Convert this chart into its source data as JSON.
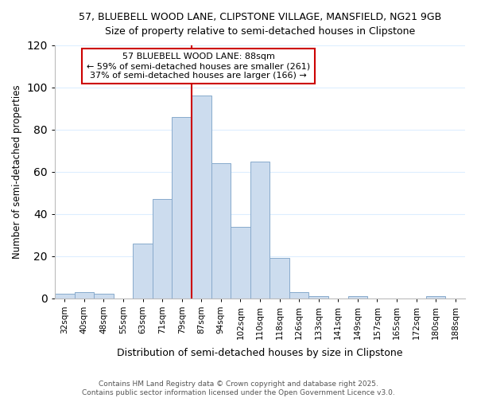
{
  "title_line1": "57, BLUEBELL WOOD LANE, CLIPSTONE VILLAGE, MANSFIELD, NG21 9GB",
  "title_line2": "Size of property relative to semi-detached houses in Clipstone",
  "xlabel": "Distribution of semi-detached houses by size in Clipstone",
  "ylabel": "Number of semi-detached properties",
  "categories": [
    "32sqm",
    "40sqm",
    "48sqm",
    "55sqm",
    "63sqm",
    "71sqm",
    "79sqm",
    "87sqm",
    "94sqm",
    "102sqm",
    "110sqm",
    "118sqm",
    "126sqm",
    "133sqm",
    "141sqm",
    "149sqm",
    "157sqm",
    "165sqm",
    "172sqm",
    "180sqm",
    "188sqm"
  ],
  "values": [
    2,
    3,
    2,
    0,
    26,
    47,
    86,
    96,
    64,
    34,
    65,
    19,
    3,
    1,
    0,
    1,
    0,
    0,
    0,
    1,
    0
  ],
  "bar_color": "#ccdcee",
  "bar_edge_color": "#88aacc",
  "subject_bar_index": 7,
  "annotation_line1": "57 BLUEBELL WOOD LANE: 88sqm",
  "annotation_line2": "← 59% of semi-detached houses are smaller (261)",
  "annotation_line3": "37% of semi-detached houses are larger (166) →",
  "ylim": [
    0,
    120
  ],
  "yticks": [
    0,
    20,
    40,
    60,
    80,
    100,
    120
  ],
  "footer_line1": "Contains HM Land Registry data © Crown copyright and database right 2025.",
  "footer_line2": "Contains public sector information licensed under the Open Government Licence v3.0.",
  "annotation_box_color": "#ffffff",
  "annotation_box_edge": "#cc0000",
  "vline_color": "#cc0000",
  "background_color": "#ffffff",
  "grid_color": "#ddeeff"
}
